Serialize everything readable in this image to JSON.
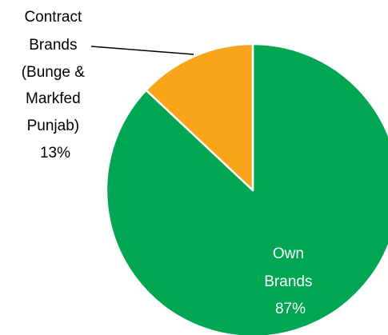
{
  "chart_data": {
    "type": "pie",
    "slices": [
      {
        "label_lines": [
          "Own",
          "Brands"
        ],
        "value": 87,
        "value_text": "87%",
        "color": "#00A651",
        "label_color": "#ffffff"
      },
      {
        "label_lines": [
          "Contract",
          "Brands",
          "(Bunge &",
          "Markfed",
          "Punjab)"
        ],
        "value": 13,
        "value_text": "13%",
        "color": "#F9A51A",
        "label_color": "#000000"
      }
    ],
    "start_angle_deg": 0,
    "direction": "clockwise",
    "slice_border_color": "#ffffff",
    "legend": "none"
  }
}
